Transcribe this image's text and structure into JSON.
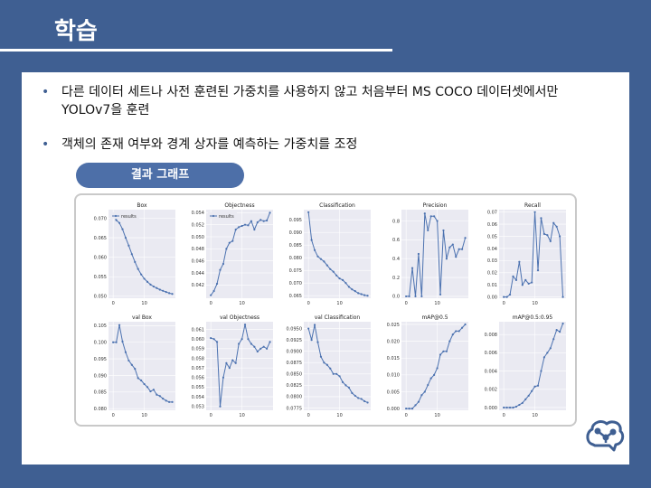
{
  "slide": {
    "title": "학습",
    "bullets": [
      "다른 데이터 세트나 사전 훈련된 가중치를 사용하지 않고 처음부터 MS COCO 데이터셋에서만 YOLOv7을 훈련",
      "객체의 존재 여부와 경계 상자를 예측하는 가중치를 조정"
    ],
    "pill_label": "결과 그래프"
  },
  "colors": {
    "background": "#3f5f92",
    "pill": "#4d6fa8",
    "plot_bg": "#eaeaf2",
    "line": "#4c72b0"
  },
  "logo": {
    "icon": "brain-network-icon"
  },
  "chart_data": [
    {
      "type": "line",
      "title": "Box",
      "legend": "results",
      "x": [
        0,
        1,
        2,
        3,
        4,
        5,
        6,
        7,
        8,
        9,
        10,
        11,
        12,
        13,
        14,
        15,
        16,
        17,
        18,
        19
      ],
      "y": [
        0.0712,
        0.0695,
        0.0688,
        0.0672,
        0.065,
        0.063,
        0.0608,
        0.0588,
        0.057,
        0.0556,
        0.0545,
        0.0537,
        0.053,
        0.0525,
        0.0521,
        0.0517,
        0.0514,
        0.0511,
        0.0508,
        0.0506
      ],
      "ylim": [
        0.0495,
        0.0722
      ],
      "yticks": [
        0.05,
        0.055,
        0.06,
        0.065,
        0.07
      ],
      "ytick_labels": [
        "0.050",
        "0.055",
        "0.060",
        "0.065",
        "0.070"
      ]
    },
    {
      "type": "line",
      "title": "Objectness",
      "legend": "results",
      "x": [
        0,
        1,
        2,
        3,
        4,
        5,
        6,
        7,
        8,
        9,
        10,
        11,
        12,
        13,
        14,
        15,
        16,
        17,
        18,
        19
      ],
      "y": [
        0.0403,
        0.041,
        0.0422,
        0.0445,
        0.0455,
        0.048,
        0.049,
        0.0493,
        0.0512,
        0.0516,
        0.0518,
        0.052,
        0.0519,
        0.0526,
        0.0512,
        0.0524,
        0.0528,
        0.0526,
        0.0527,
        0.054
      ],
      "ylim": [
        0.0398,
        0.0545
      ],
      "yticks": [
        0.042,
        0.044,
        0.046,
        0.048,
        0.05,
        0.052,
        0.054
      ],
      "ytick_labels": [
        "0.042",
        "0.044",
        "0.046",
        "0.048",
        "0.050",
        "0.052",
        "0.054"
      ]
    },
    {
      "type": "line",
      "title": "Classification",
      "x": [
        0,
        1,
        2,
        3,
        4,
        5,
        6,
        7,
        8,
        9,
        10,
        11,
        12,
        13,
        14,
        15,
        16,
        17,
        18,
        19
      ],
      "y": [
        0.098,
        0.087,
        0.083,
        0.0805,
        0.0795,
        0.0785,
        0.077,
        0.0755,
        0.0745,
        0.073,
        0.0718,
        0.0712,
        0.07,
        0.0685,
        0.0675,
        0.0668,
        0.066,
        0.0656,
        0.0652,
        0.065
      ],
      "ylim": [
        0.064,
        0.099
      ],
      "yticks": [
        0.065,
        0.07,
        0.075,
        0.08,
        0.085,
        0.09,
        0.095
      ],
      "ytick_labels": [
        "0.065",
        "0.070",
        "0.075",
        "0.080",
        "0.085",
        "0.090",
        "0.095"
      ]
    },
    {
      "type": "line",
      "title": "Precision",
      "x": [
        0,
        1,
        2,
        3,
        4,
        5,
        6,
        7,
        8,
        9,
        10,
        11,
        12,
        13,
        14,
        15,
        16,
        17,
        18,
        19
      ],
      "y": [
        0.0,
        0.0,
        0.3,
        0.0,
        0.45,
        0.0,
        0.88,
        0.7,
        0.85,
        0.85,
        0.8,
        0.02,
        0.7,
        0.4,
        0.52,
        0.55,
        0.42,
        0.5,
        0.5,
        0.62
      ],
      "ylim": [
        -0.02,
        0.92
      ],
      "yticks": [
        0.0,
        0.2,
        0.4,
        0.6,
        0.8
      ],
      "ytick_labels": [
        "0.0",
        "0.2",
        "0.4",
        "0.6",
        "0.8"
      ]
    },
    {
      "type": "line",
      "title": "Recall",
      "x": [
        0,
        1,
        2,
        3,
        4,
        5,
        6,
        7,
        8,
        9,
        10,
        11,
        12,
        13,
        14,
        15,
        16,
        17,
        18,
        19
      ],
      "y": [
        0.0,
        0.0,
        0.002,
        0.017,
        0.014,
        0.029,
        0.01,
        0.014,
        0.011,
        0.012,
        0.07,
        0.022,
        0.065,
        0.052,
        0.051,
        0.046,
        0.061,
        0.058,
        0.05,
        0.0
      ],
      "ylim": [
        -0.001,
        0.072
      ],
      "yticks": [
        0.0,
        0.01,
        0.02,
        0.03,
        0.04,
        0.05,
        0.06,
        0.07
      ],
      "ytick_labels": [
        "0.00",
        "0.01",
        "0.02",
        "0.03",
        "0.04",
        "0.05",
        "0.06",
        "0.07"
      ]
    },
    {
      "type": "line",
      "title": "val Box",
      "x": [
        0,
        1,
        2,
        3,
        4,
        5,
        6,
        7,
        8,
        9,
        10,
        11,
        12,
        13,
        14,
        15,
        16,
        17,
        18,
        19
      ],
      "y": [
        0.1,
        0.1,
        0.1052,
        0.1002,
        0.097,
        0.0945,
        0.0932,
        0.092,
        0.0892,
        0.0885,
        0.0874,
        0.0865,
        0.0852,
        0.0857,
        0.0842,
        0.0838,
        0.083,
        0.0824,
        0.082,
        0.082
      ],
      "ylim": [
        0.0795,
        0.1062
      ],
      "yticks": [
        0.08,
        0.085,
        0.09,
        0.095,
        0.1,
        0.105
      ],
      "ytick_labels": [
        "0.080",
        "0.085",
        "0.090",
        "0.095",
        "0.100",
        "0.105"
      ]
    },
    {
      "type": "line",
      "title": "val Objectness",
      "x": [
        0,
        1,
        2,
        3,
        4,
        5,
        6,
        7,
        8,
        9,
        10,
        11,
        12,
        13,
        14,
        15,
        16,
        17,
        18,
        19
      ],
      "y": [
        0.0601,
        0.06,
        0.0597,
        0.053,
        0.056,
        0.0575,
        0.057,
        0.0578,
        0.0575,
        0.0595,
        0.06,
        0.0615,
        0.06,
        0.0595,
        0.0592,
        0.0587,
        0.059,
        0.0592,
        0.059,
        0.0597
      ],
      "ylim": [
        0.0526,
        0.0618
      ],
      "yticks": [
        0.053,
        0.054,
        0.055,
        0.056,
        0.057,
        0.058,
        0.059,
        0.06,
        0.061
      ],
      "ytick_labels": [
        "0.053",
        "0.054",
        "0.055",
        "0.056",
        "0.057",
        "0.058",
        "0.059",
        "0.060",
        "0.061"
      ]
    },
    {
      "type": "line",
      "title": "val Classification",
      "x": [
        0,
        1,
        2,
        3,
        4,
        5,
        6,
        7,
        8,
        9,
        10,
        11,
        12,
        13,
        14,
        15,
        16,
        17,
        18,
        19
      ],
      "y": [
        0.095,
        0.0925,
        0.0958,
        0.092,
        0.0888,
        0.0875,
        0.087,
        0.0862,
        0.085,
        0.085,
        0.0845,
        0.0832,
        0.0825,
        0.082,
        0.0808,
        0.0802,
        0.0797,
        0.0795,
        0.079,
        0.0787
      ],
      "ylim": [
        0.077,
        0.0965
      ],
      "yticks": [
        0.0775,
        0.08,
        0.0825,
        0.085,
        0.0875,
        0.09,
        0.0925,
        0.095
      ],
      "ytick_labels": [
        "0.0775",
        "0.0800",
        "0.0825",
        "0.0850",
        "0.0875",
        "0.0900",
        "0.0925",
        "0.0950"
      ]
    },
    {
      "type": "line",
      "title": "mAP@0.5",
      "x": [
        0,
        1,
        2,
        3,
        4,
        5,
        6,
        7,
        8,
        9,
        10,
        11,
        12,
        13,
        14,
        15,
        16,
        17,
        18,
        19
      ],
      "y": [
        0.0,
        0.0,
        0.0,
        0.001,
        0.002,
        0.004,
        0.005,
        0.007,
        0.009,
        0.01,
        0.012,
        0.016,
        0.017,
        0.017,
        0.02,
        0.022,
        0.023,
        0.023,
        0.024,
        0.025
      ],
      "ylim": [
        -0.0005,
        0.0258
      ],
      "yticks": [
        0.0,
        0.005,
        0.01,
        0.015,
        0.02,
        0.025
      ],
      "ytick_labels": [
        "0.000",
        "0.005",
        "0.010",
        "0.015",
        "0.020",
        "0.025"
      ]
    },
    {
      "type": "line",
      "title": "mAP@0.5:0.95",
      "x": [
        0,
        1,
        2,
        3,
        4,
        5,
        6,
        7,
        8,
        9,
        10,
        11,
        12,
        13,
        14,
        15,
        16,
        17,
        18,
        19
      ],
      "y": [
        0.0,
        0.0,
        0.0,
        0.0,
        0.0001,
        0.0003,
        0.0005,
        0.0009,
        0.0013,
        0.0018,
        0.0023,
        0.0024,
        0.004,
        0.0055,
        0.006,
        0.0065,
        0.0075,
        0.0085,
        0.0083,
        0.0092
      ],
      "ylim": [
        -0.0003,
        0.0094
      ],
      "yticks": [
        0.0,
        0.002,
        0.004,
        0.006,
        0.008
      ],
      "ytick_labels": [
        "0.000",
        "0.002",
        "0.004",
        "0.006",
        "0.008"
      ]
    }
  ],
  "xaxis": {
    "xlim": [
      -1.5,
      20
    ],
    "xticks": [
      0,
      10
    ],
    "xtick_labels": [
      "0",
      "10"
    ]
  }
}
